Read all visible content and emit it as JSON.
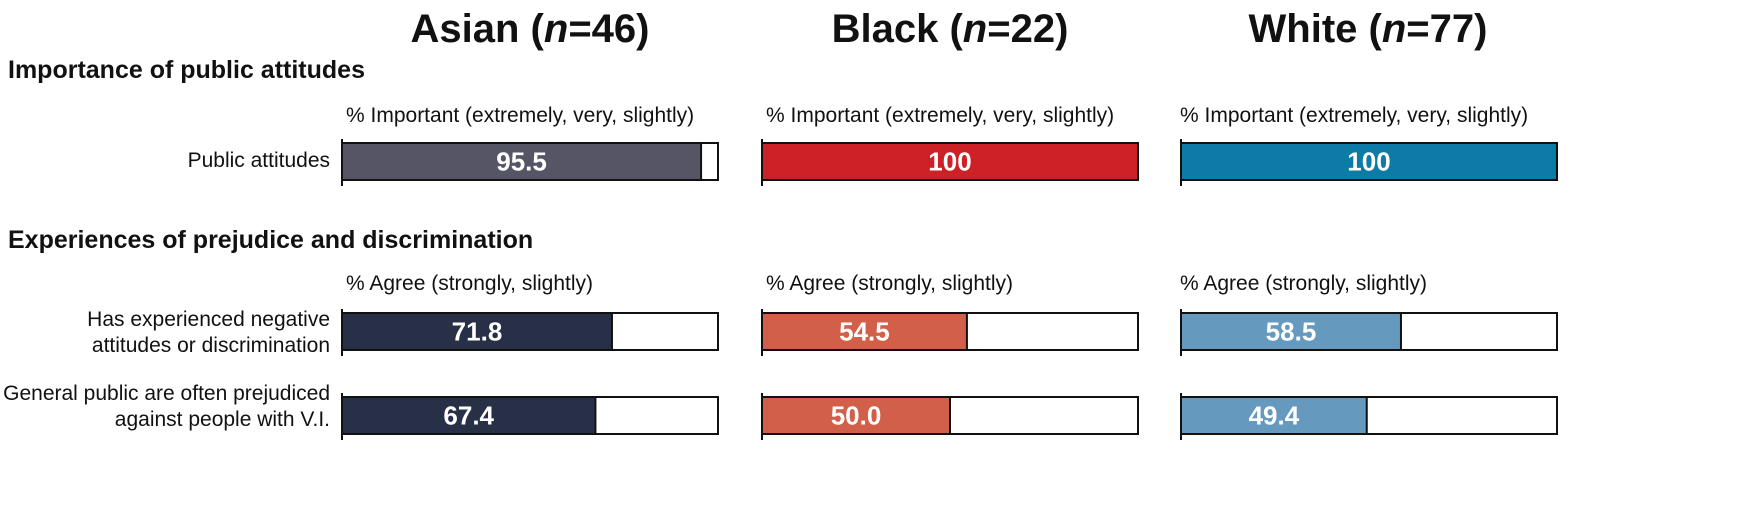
{
  "colors": {
    "asian": [
      "#555566",
      "#283047",
      "#283047"
    ],
    "black": [
      "#cb2127",
      "#d25f49",
      "#d25f49"
    ],
    "white": [
      "#0c7ca6",
      "#6699be",
      "#6699be"
    ],
    "outline": "#111111",
    "value_text": "#ffffff"
  },
  "groups": [
    {
      "name": "Asian",
      "n_label": "n",
      "n_value": "=46"
    },
    {
      "name": "Black",
      "n_label": "n",
      "n_value": "=22"
    },
    {
      "name": "White",
      "n_label": "n",
      "n_value": "=77"
    }
  ],
  "sections": [
    {
      "title": "Importance of public attitudes",
      "axis_label": "% Important (extremely, very, slightly)"
    },
    {
      "title": "Experiences of prejudice and discrimination",
      "axis_label": "% Agree (strongly, slightly)"
    }
  ],
  "rows": [
    {
      "label": "Public attitudes"
    },
    {
      "label": "Has experienced negative attitudes or discrimination"
    },
    {
      "label": "General public are often prejudiced against people with V.I."
    }
  ],
  "chart_data": {
    "type": "bar",
    "orientation": "horizontal",
    "xlim": [
      0,
      100
    ],
    "categories": [
      "Public attitudes",
      "Has experienced negative attitudes or discrimination",
      "General public are often prejudiced against people with V.I."
    ],
    "series": [
      {
        "name": "Asian (n=46)",
        "values": [
          95.5,
          71.8,
          67.4
        ],
        "labels": [
          "95.5",
          "71.8",
          "67.4"
        ]
      },
      {
        "name": "Black (n=22)",
        "values": [
          100,
          54.5,
          50.0
        ],
        "labels": [
          "100",
          "54.5",
          "50.0"
        ]
      },
      {
        "name": "White (n=77)",
        "values": [
          100,
          58.5,
          49.4
        ],
        "labels": [
          "100",
          "58.5",
          "49.4"
        ]
      }
    ]
  }
}
